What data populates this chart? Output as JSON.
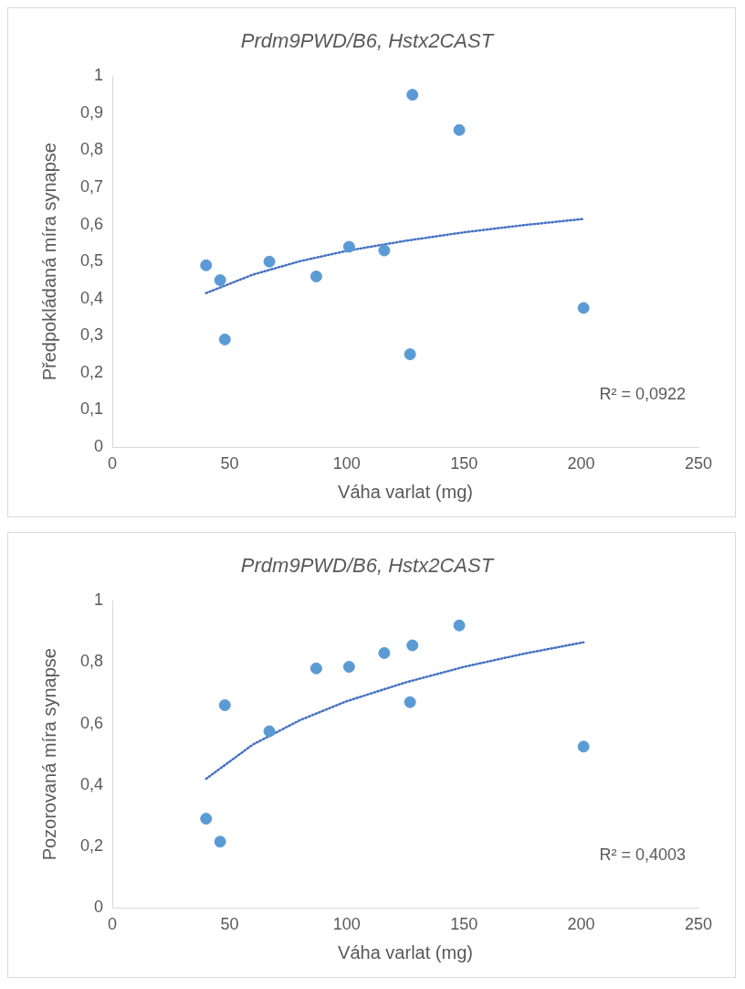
{
  "chart_data": [
    {
      "type": "scatter",
      "title": "Prdm9PWD/B6, Hstx2CAST",
      "xlabel": "Váha varlat (mg)",
      "ylabel": "Předpokládaná míra synapse",
      "xlim": [
        0,
        250
      ],
      "xticks": [
        0,
        50,
        100,
        150,
        200,
        250
      ],
      "ylim": [
        0,
        1
      ],
      "yticks": [
        {
          "value": 0,
          "label": "0"
        },
        {
          "value": 0.1,
          "label": "0,1"
        },
        {
          "value": 0.2,
          "label": "0,2"
        },
        {
          "value": 0.3,
          "label": "0,3"
        },
        {
          "value": 0.4,
          "label": "0,4"
        },
        {
          "value": 0.5,
          "label": "0,5"
        },
        {
          "value": 0.6,
          "label": "0,6"
        },
        {
          "value": 0.7,
          "label": "0,7"
        },
        {
          "value": 0.8,
          "label": "0,8"
        },
        {
          "value": 0.9,
          "label": "0,9"
        },
        1
      ],
      "grid": false,
      "legend": false,
      "marker": "circle",
      "annotations": [
        "R² = 0,0922"
      ],
      "series": [
        {
          "type": "scatter",
          "color": "#5b9bd5",
          "x": [
            40,
            46,
            48,
            67,
            87,
            101,
            116,
            127,
            128,
            148,
            201
          ],
          "values": [
            0.49,
            0.45,
            0.29,
            0.5,
            0.46,
            0.54,
            0.53,
            0.25,
            0.95,
            0.855,
            0.375
          ]
        },
        {
          "type": "line",
          "color": "#4472c4",
          "line_style": "dotted",
          "marker": "none",
          "x": [
            40,
            60,
            80,
            100,
            125,
            150,
            175,
            201
          ],
          "values": [
            0.415,
            0.465,
            0.501,
            0.529,
            0.556,
            0.579,
            0.598,
            0.615
          ]
        }
      ]
    },
    {
      "type": "scatter",
      "title": "Prdm9PWD/B6, Hstx2CAST",
      "xlabel": "Váha varlat (mg)",
      "ylabel": "Pozorovaná míra synapse",
      "xlim": [
        0,
        250
      ],
      "xticks": [
        0,
        50,
        100,
        150,
        200,
        250
      ],
      "ylim": [
        0,
        1
      ],
      "yticks": [
        {
          "value": 0,
          "label": "0"
        },
        {
          "value": 0.2,
          "label": "0,2"
        },
        {
          "value": 0.4,
          "label": "0,4"
        },
        {
          "value": 0.6,
          "label": "0,6"
        },
        {
          "value": 0.8,
          "label": "0,8"
        },
        1
      ],
      "grid": false,
      "legend": false,
      "marker": "circle",
      "annotations": [
        "R² = 0,4003"
      ],
      "series": [
        {
          "type": "scatter",
          "color": "#5b9bd5",
          "x": [
            40,
            46,
            48,
            67,
            87,
            101,
            116,
            127,
            128,
            148,
            201
          ],
          "values": [
            0.29,
            0.215,
            0.66,
            0.575,
            0.78,
            0.785,
            0.83,
            0.67,
            0.855,
            0.92,
            0.525
          ]
        },
        {
          "type": "line",
          "color": "#4472c4",
          "line_style": "dotted",
          "marker": "none",
          "x": [
            40,
            60,
            80,
            100,
            125,
            150,
            175,
            201
          ],
          "values": [
            0.42,
            0.532,
            0.611,
            0.673,
            0.734,
            0.785,
            0.827,
            0.865
          ]
        }
      ]
    }
  ]
}
